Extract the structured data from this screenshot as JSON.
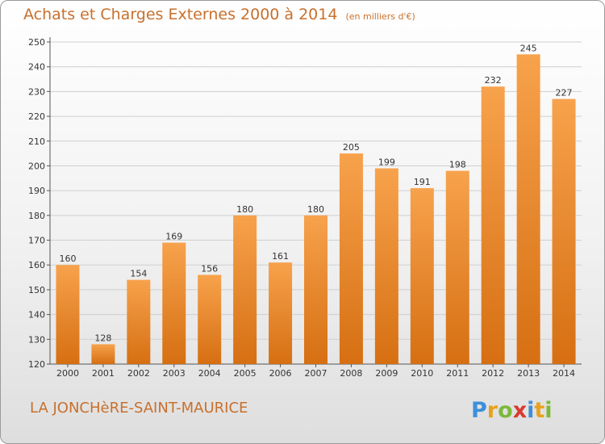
{
  "header": {
    "title": "Achats et Charges Externes 2000 à 2014",
    "unit": "(en milliers d'€)"
  },
  "footer": {
    "commune": "LA JONCHèRE-SAINT-MAURICE",
    "brand": "Proxiti"
  },
  "colors": {
    "bar_top": "#f7a24c",
    "bar_bottom": "#d66f12",
    "title": "#c8702c",
    "grid": "#cfcfcf"
  },
  "chart_data": {
    "type": "bar",
    "title": "Achats et Charges Externes 2000 à 2014",
    "subtitle": "(en milliers d'€)",
    "xlabel": "",
    "ylabel": "",
    "categories": [
      "2000",
      "2001",
      "2002",
      "2003",
      "2004",
      "2005",
      "2006",
      "2007",
      "2008",
      "2009",
      "2010",
      "2011",
      "2012",
      "2013",
      "2014"
    ],
    "values": [
      160,
      128,
      154,
      169,
      156,
      180,
      161,
      180,
      205,
      199,
      191,
      198,
      232,
      245,
      227
    ],
    "ylim": [
      120,
      250
    ],
    "yticks": [
      120,
      130,
      140,
      150,
      160,
      170,
      180,
      190,
      200,
      210,
      220,
      230,
      240,
      250
    ],
    "grid": true,
    "data_labels": true,
    "legend": "none"
  }
}
